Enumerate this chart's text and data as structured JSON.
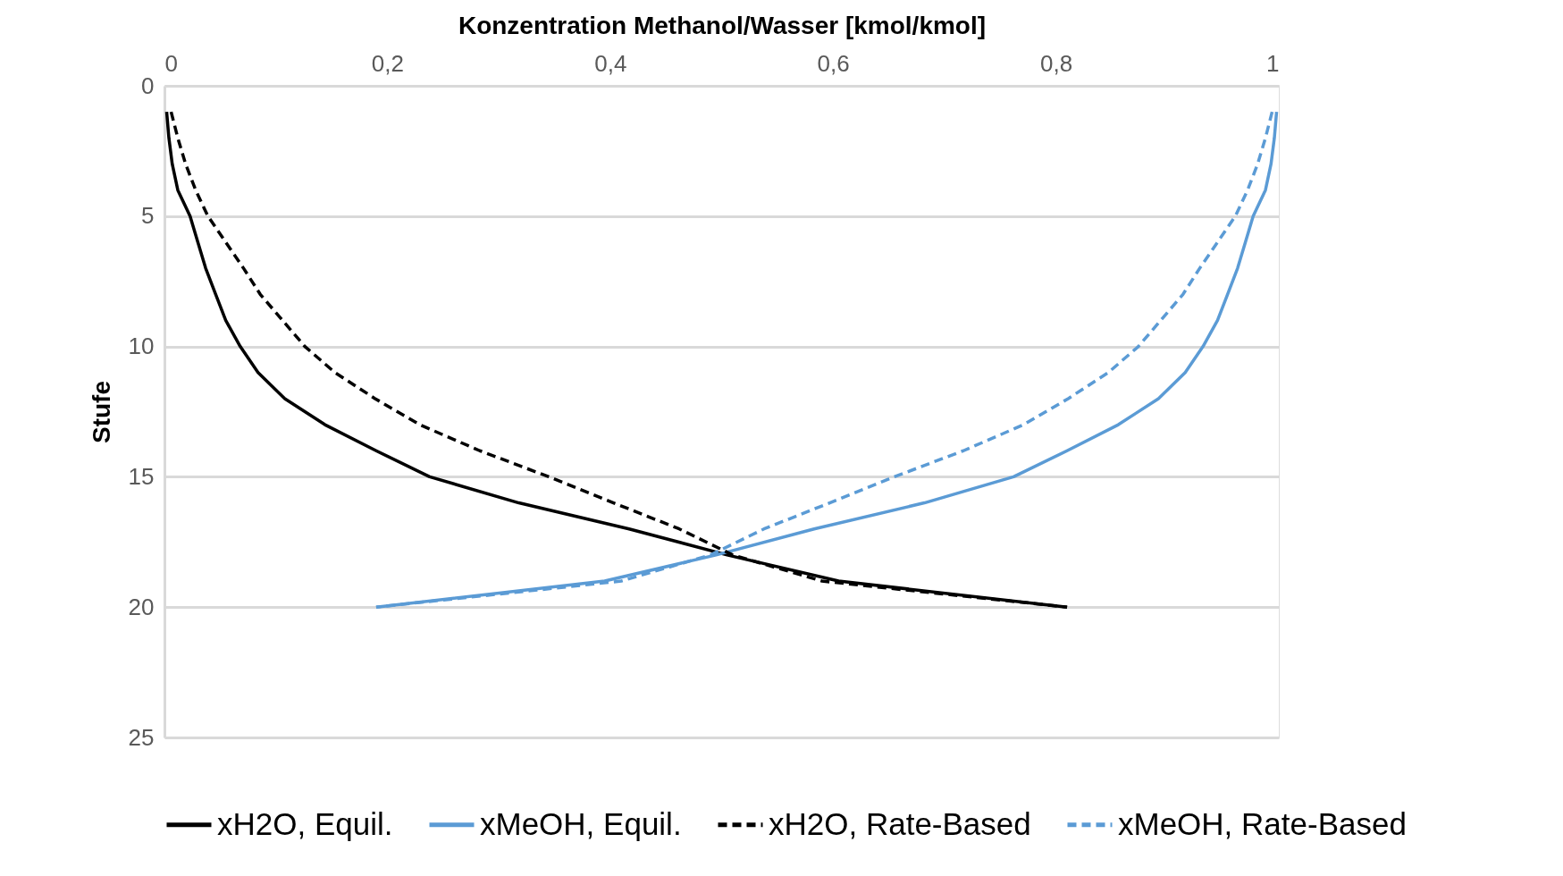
{
  "chart_data": {
    "type": "line",
    "xlabel": "Konzentration Methanol/Wasser  [kmol/kmol]",
    "ylabel": "Stufe",
    "xlim": [
      0,
      1
    ],
    "xticks": [
      0,
      {
        "value": 0.2,
        "label": "0,2"
      },
      {
        "value": 0.4,
        "label": "0,4"
      },
      {
        "value": 0.6,
        "label": "0,6"
      },
      {
        "value": 0.8,
        "label": "0,8"
      },
      1
    ],
    "ylim": [
      25,
      0
    ],
    "yticks": [
      0,
      5,
      10,
      15,
      20,
      25
    ],
    "grid": "y",
    "legend": "bottom",
    "series": [
      {
        "name": "xH2O, Equil.",
        "color": "#000000",
        "line_style": "solid",
        "x": [
          0.002,
          0.004,
          0.007,
          0.012,
          0.023,
          0.03,
          0.037,
          0.046,
          0.055,
          0.068,
          0.084,
          0.108,
          0.144,
          0.19,
          0.238,
          0.318,
          0.417,
          0.505,
          0.605,
          0.81
        ],
        "values": [
          1,
          2,
          3,
          4,
          5,
          6,
          7,
          8,
          9,
          10,
          11,
          12,
          13,
          14,
          15,
          16,
          17,
          18,
          19,
          20
        ]
      },
      {
        "name": "xMeOH, Equil.",
        "color": "#5b9bd5",
        "line_style": "solid",
        "x": [
          0.998,
          0.996,
          0.993,
          0.988,
          0.977,
          0.97,
          0.963,
          0.954,
          0.945,
          0.932,
          0.916,
          0.892,
          0.856,
          0.81,
          0.762,
          0.682,
          0.583,
          0.495,
          0.395,
          0.19
        ],
        "values": [
          1,
          2,
          3,
          4,
          5,
          6,
          7,
          8,
          9,
          10,
          11,
          12,
          13,
          14,
          15,
          16,
          17,
          18,
          19,
          20
        ]
      },
      {
        "name": "xH2O, Rate-Based",
        "color": "#000000",
        "line_style": "dashed",
        "x": [
          0.006,
          0.012,
          0.019,
          0.028,
          0.039,
          0.055,
          0.071,
          0.086,
          0.106,
          0.126,
          0.153,
          0.189,
          0.229,
          0.283,
          0.345,
          0.403,
          0.462,
          0.51,
          0.59,
          0.81
        ],
        "values": [
          1,
          2,
          3,
          4,
          5,
          6,
          7,
          8,
          9,
          10,
          11,
          12,
          13,
          14,
          15,
          16,
          17,
          18,
          19,
          20
        ]
      },
      {
        "name": "xMeOH, Rate-Based",
        "color": "#5b9bd5",
        "line_style": "dashed",
        "x": [
          0.994,
          0.988,
          0.981,
          0.972,
          0.961,
          0.945,
          0.929,
          0.914,
          0.894,
          0.874,
          0.847,
          0.811,
          0.771,
          0.717,
          0.655,
          0.597,
          0.538,
          0.49,
          0.41,
          0.19
        ],
        "values": [
          1,
          2,
          3,
          4,
          5,
          6,
          7,
          8,
          9,
          10,
          11,
          12,
          13,
          14,
          15,
          16,
          17,
          18,
          19,
          20
        ]
      }
    ]
  }
}
